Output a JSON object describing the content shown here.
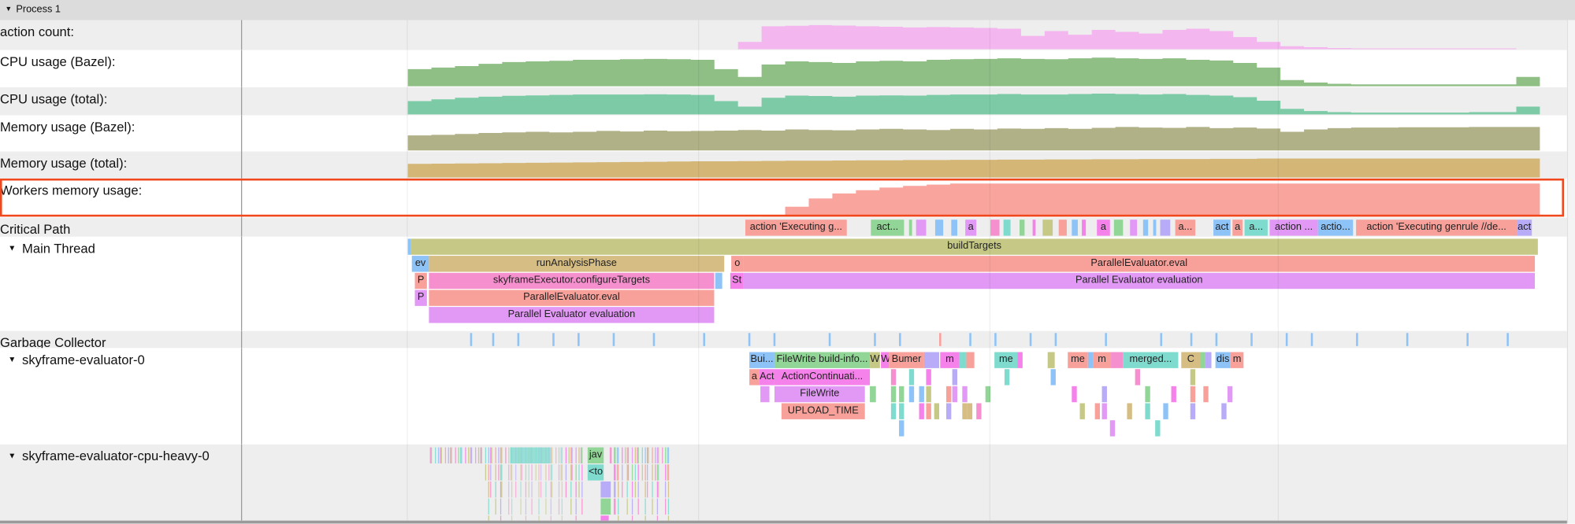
{
  "process": {
    "title": "Process 1",
    "expand_icon": "triangle-down-icon"
  },
  "palette": {
    "salmon": "#f8a19b",
    "pink": "#f68fce",
    "violet": "#e298f5",
    "blue": "#8ec3f8",
    "green": "#91d696",
    "teal": "#80dbcf",
    "olive": "#c5c985",
    "tan": "#d5bd83",
    "magenta": "#f582ea",
    "lavender": "#b8abf7",
    "highlight": "#f0471d"
  },
  "counters": [
    {
      "label": "action count:",
      "color": "#f4b6ef",
      "values": [
        0,
        0,
        0,
        0,
        0,
        0,
        0,
        0,
        0,
        0,
        0,
        0,
        0,
        0,
        0.3,
        0.95,
        0.97,
        1,
        0.98,
        0.95,
        0.93,
        0.9,
        0.92,
        0.9,
        0.88,
        0.85,
        0.55,
        0.75,
        0.6,
        0.8,
        0.72,
        0.65,
        0.8,
        0.85,
        0.75,
        0.5,
        0.3,
        0.12,
        0.08,
        0.05,
        0.03,
        0.03,
        0.03,
        0.03,
        0.03,
        0.03,
        0.03,
        0
      ]
    },
    {
      "label": "CPU usage (Bazel):",
      "color": "#8fbf85",
      "values": [
        0.55,
        0.6,
        0.65,
        0.72,
        0.78,
        0.8,
        0.82,
        0.85,
        0.85,
        0.87,
        0.88,
        0.87,
        0.85,
        0.55,
        0.3,
        0.7,
        0.8,
        0.78,
        0.75,
        0.8,
        0.82,
        0.8,
        0.85,
        0.87,
        0.88,
        0.9,
        0.88,
        0.87,
        0.9,
        0.92,
        0.9,
        0.88,
        0.9,
        0.85,
        0.83,
        0.75,
        0.6,
        0.2,
        0.12,
        0.08,
        0.06,
        0.06,
        0.06,
        0.06,
        0.06,
        0.06,
        0.06,
        0.3
      ]
    },
    {
      "label": "CPU usage (total):",
      "color": "#7ccba6",
      "values": [
        0.6,
        0.68,
        0.75,
        0.8,
        0.84,
        0.86,
        0.88,
        0.9,
        0.9,
        0.9,
        0.91,
        0.9,
        0.88,
        0.6,
        0.35,
        0.75,
        0.85,
        0.83,
        0.8,
        0.85,
        0.86,
        0.85,
        0.88,
        0.9,
        0.9,
        0.92,
        0.9,
        0.9,
        0.92,
        0.94,
        0.92,
        0.9,
        0.92,
        0.88,
        0.85,
        0.78,
        0.62,
        0.25,
        0.15,
        0.1,
        0.08,
        0.08,
        0.08,
        0.08,
        0.08,
        0.1,
        0.1,
        0.35
      ]
    },
    {
      "label": "Memory usage (Bazel):",
      "color": "#b1b188",
      "values": [
        0.5,
        0.52,
        0.55,
        0.58,
        0.6,
        0.62,
        0.6,
        0.62,
        0.65,
        0.63,
        0.66,
        0.64,
        0.65,
        0.66,
        0.68,
        0.66,
        0.7,
        0.68,
        0.67,
        0.7,
        0.72,
        0.7,
        0.68,
        0.72,
        0.7,
        0.73,
        0.72,
        0.74,
        0.72,
        0.75,
        0.78,
        0.76,
        0.75,
        0.78,
        0.74,
        0.76,
        0.73,
        0.62,
        0.7,
        0.74,
        0.76,
        0.76,
        0.77,
        0.77,
        0.77,
        0.78,
        0.78,
        0.78
      ]
    },
    {
      "label": "Memory usage (total):",
      "color": "#d4b677",
      "values": [
        0.65,
        0.66,
        0.67,
        0.68,
        0.69,
        0.7,
        0.71,
        0.72,
        0.73,
        0.74,
        0.75,
        0.76,
        0.77,
        0.77,
        0.78,
        0.79,
        0.8,
        0.8,
        0.81,
        0.82,
        0.82,
        0.83,
        0.83,
        0.84,
        0.84,
        0.85,
        0.85,
        0.86,
        0.86,
        0.87,
        0.87,
        0.88,
        0.88,
        0.88,
        0.89,
        0.89,
        0.9,
        0.9,
        0.9,
        0.9,
        0.9,
        0.9,
        0.9,
        0.9,
        0.9,
        0.9,
        0.9,
        0.9
      ]
    },
    {
      "label": "Workers memory usage:",
      "color": "#f9a59e",
      "highlighted": true,
      "values": [
        0,
        0,
        0,
        0,
        0,
        0,
        0,
        0,
        0,
        0,
        0,
        0,
        0,
        0,
        0,
        0.05,
        0.3,
        0.55,
        0.7,
        0.8,
        0.88,
        0.93,
        0.97,
        1,
        1,
        1,
        1,
        1,
        1,
        1,
        1,
        1,
        1,
        1,
        1,
        1,
        1,
        1,
        1,
        1,
        1,
        1,
        1,
        1,
        1,
        1,
        1,
        1
      ]
    }
  ],
  "threads": {
    "critical_path": {
      "label": "Critical Path",
      "slices": [
        {
          "label": "action 'Executing g...",
          "color": "#f8a19b"
        },
        {
          "label": "act...",
          "color": "#91d696"
        },
        {
          "label": "a",
          "color": "#e298f5"
        },
        {
          "label": "a",
          "color": "#f582ea"
        },
        {
          "label": "a...",
          "color": "#f8a19b"
        },
        {
          "label": "act",
          "color": "#8ec3f8"
        },
        {
          "label": "a",
          "color": "#f8a19b"
        },
        {
          "label": "a...",
          "color": "#80dbcf"
        },
        {
          "label": "action ...",
          "color": "#e298f5"
        },
        {
          "label": "actio...",
          "color": "#8ec3f8"
        },
        {
          "label": "action 'Executing genrule //de...",
          "color": "#f8a19b"
        },
        {
          "label": "act",
          "color": "#b8abf7"
        }
      ]
    },
    "main": {
      "label": "Main Thread",
      "expand_icon": "triangle-down-icon",
      "slices": [
        {
          "label": "buildTargets",
          "color": "#c5c985"
        },
        {
          "label": "ev",
          "color": "#8ec3f8"
        },
        {
          "label": "runAnalysisPhase",
          "color": "#d5bd83"
        },
        {
          "label": "o",
          "color": "#f8a19b"
        },
        {
          "label": "ParallelEvaluator.eval",
          "color": "#f8a19b"
        },
        {
          "label": "P",
          "color": "#f8a19b"
        },
        {
          "label": "skyframeExecutor.configureTargets",
          "color": "#f68fce"
        },
        {
          "label": "St",
          "color": "#f582ea"
        },
        {
          "label": "Parallel Evaluator evaluation",
          "color": "#e298f5"
        },
        {
          "label": "P",
          "color": "#e298f5"
        },
        {
          "label": "ParallelEvaluator.eval",
          "color": "#f8a19b"
        },
        {
          "label": "Parallel Evaluator evaluation",
          "color": "#e298f5"
        }
      ]
    },
    "gc": {
      "label": "Garbage Collector"
    },
    "evaluator0": {
      "label": "skyframe-evaluator-0",
      "expand_icon": "triangle-down-icon",
      "slices": [
        {
          "label": "Bui...",
          "color": "#8ec3f8"
        },
        {
          "label": "FileWrite build-info...",
          "color": "#91d696"
        },
        {
          "label": "W",
          "color": "#c5c985"
        },
        {
          "label": "W",
          "color": "#f582ea"
        },
        {
          "label": "Bumer",
          "color": "#f8a19b"
        },
        {
          "label": "m",
          "color": "#f582ea"
        },
        {
          "label": "me",
          "color": "#80dbcf"
        },
        {
          "label": "me",
          "color": "#f8a19b"
        },
        {
          "label": "m",
          "color": "#f8a19b"
        },
        {
          "label": "merged...",
          "color": "#80dbcf"
        },
        {
          "label": "C",
          "color": "#d5bd83"
        },
        {
          "label": "dis",
          "color": "#8ec3f8"
        },
        {
          "label": "m",
          "color": "#f8a19b"
        },
        {
          "label": "a",
          "color": "#f8a19b"
        },
        {
          "label": "Act",
          "color": "#f582ea"
        },
        {
          "label": "ActionContinuati...",
          "color": "#f582ea"
        },
        {
          "label": "FileWrite",
          "color": "#e298f5"
        },
        {
          "label": "UPLOAD_TIME",
          "color": "#f8a19b"
        }
      ]
    },
    "cpu_heavy": {
      "label": "skyframe-evaluator-cpu-heavy-0",
      "expand_icon": "triangle-down-icon",
      "slices": [
        {
          "label": "jav",
          "color": "#91d696"
        },
        {
          "label": "<to",
          "color": "#80dbcf"
        }
      ]
    }
  }
}
